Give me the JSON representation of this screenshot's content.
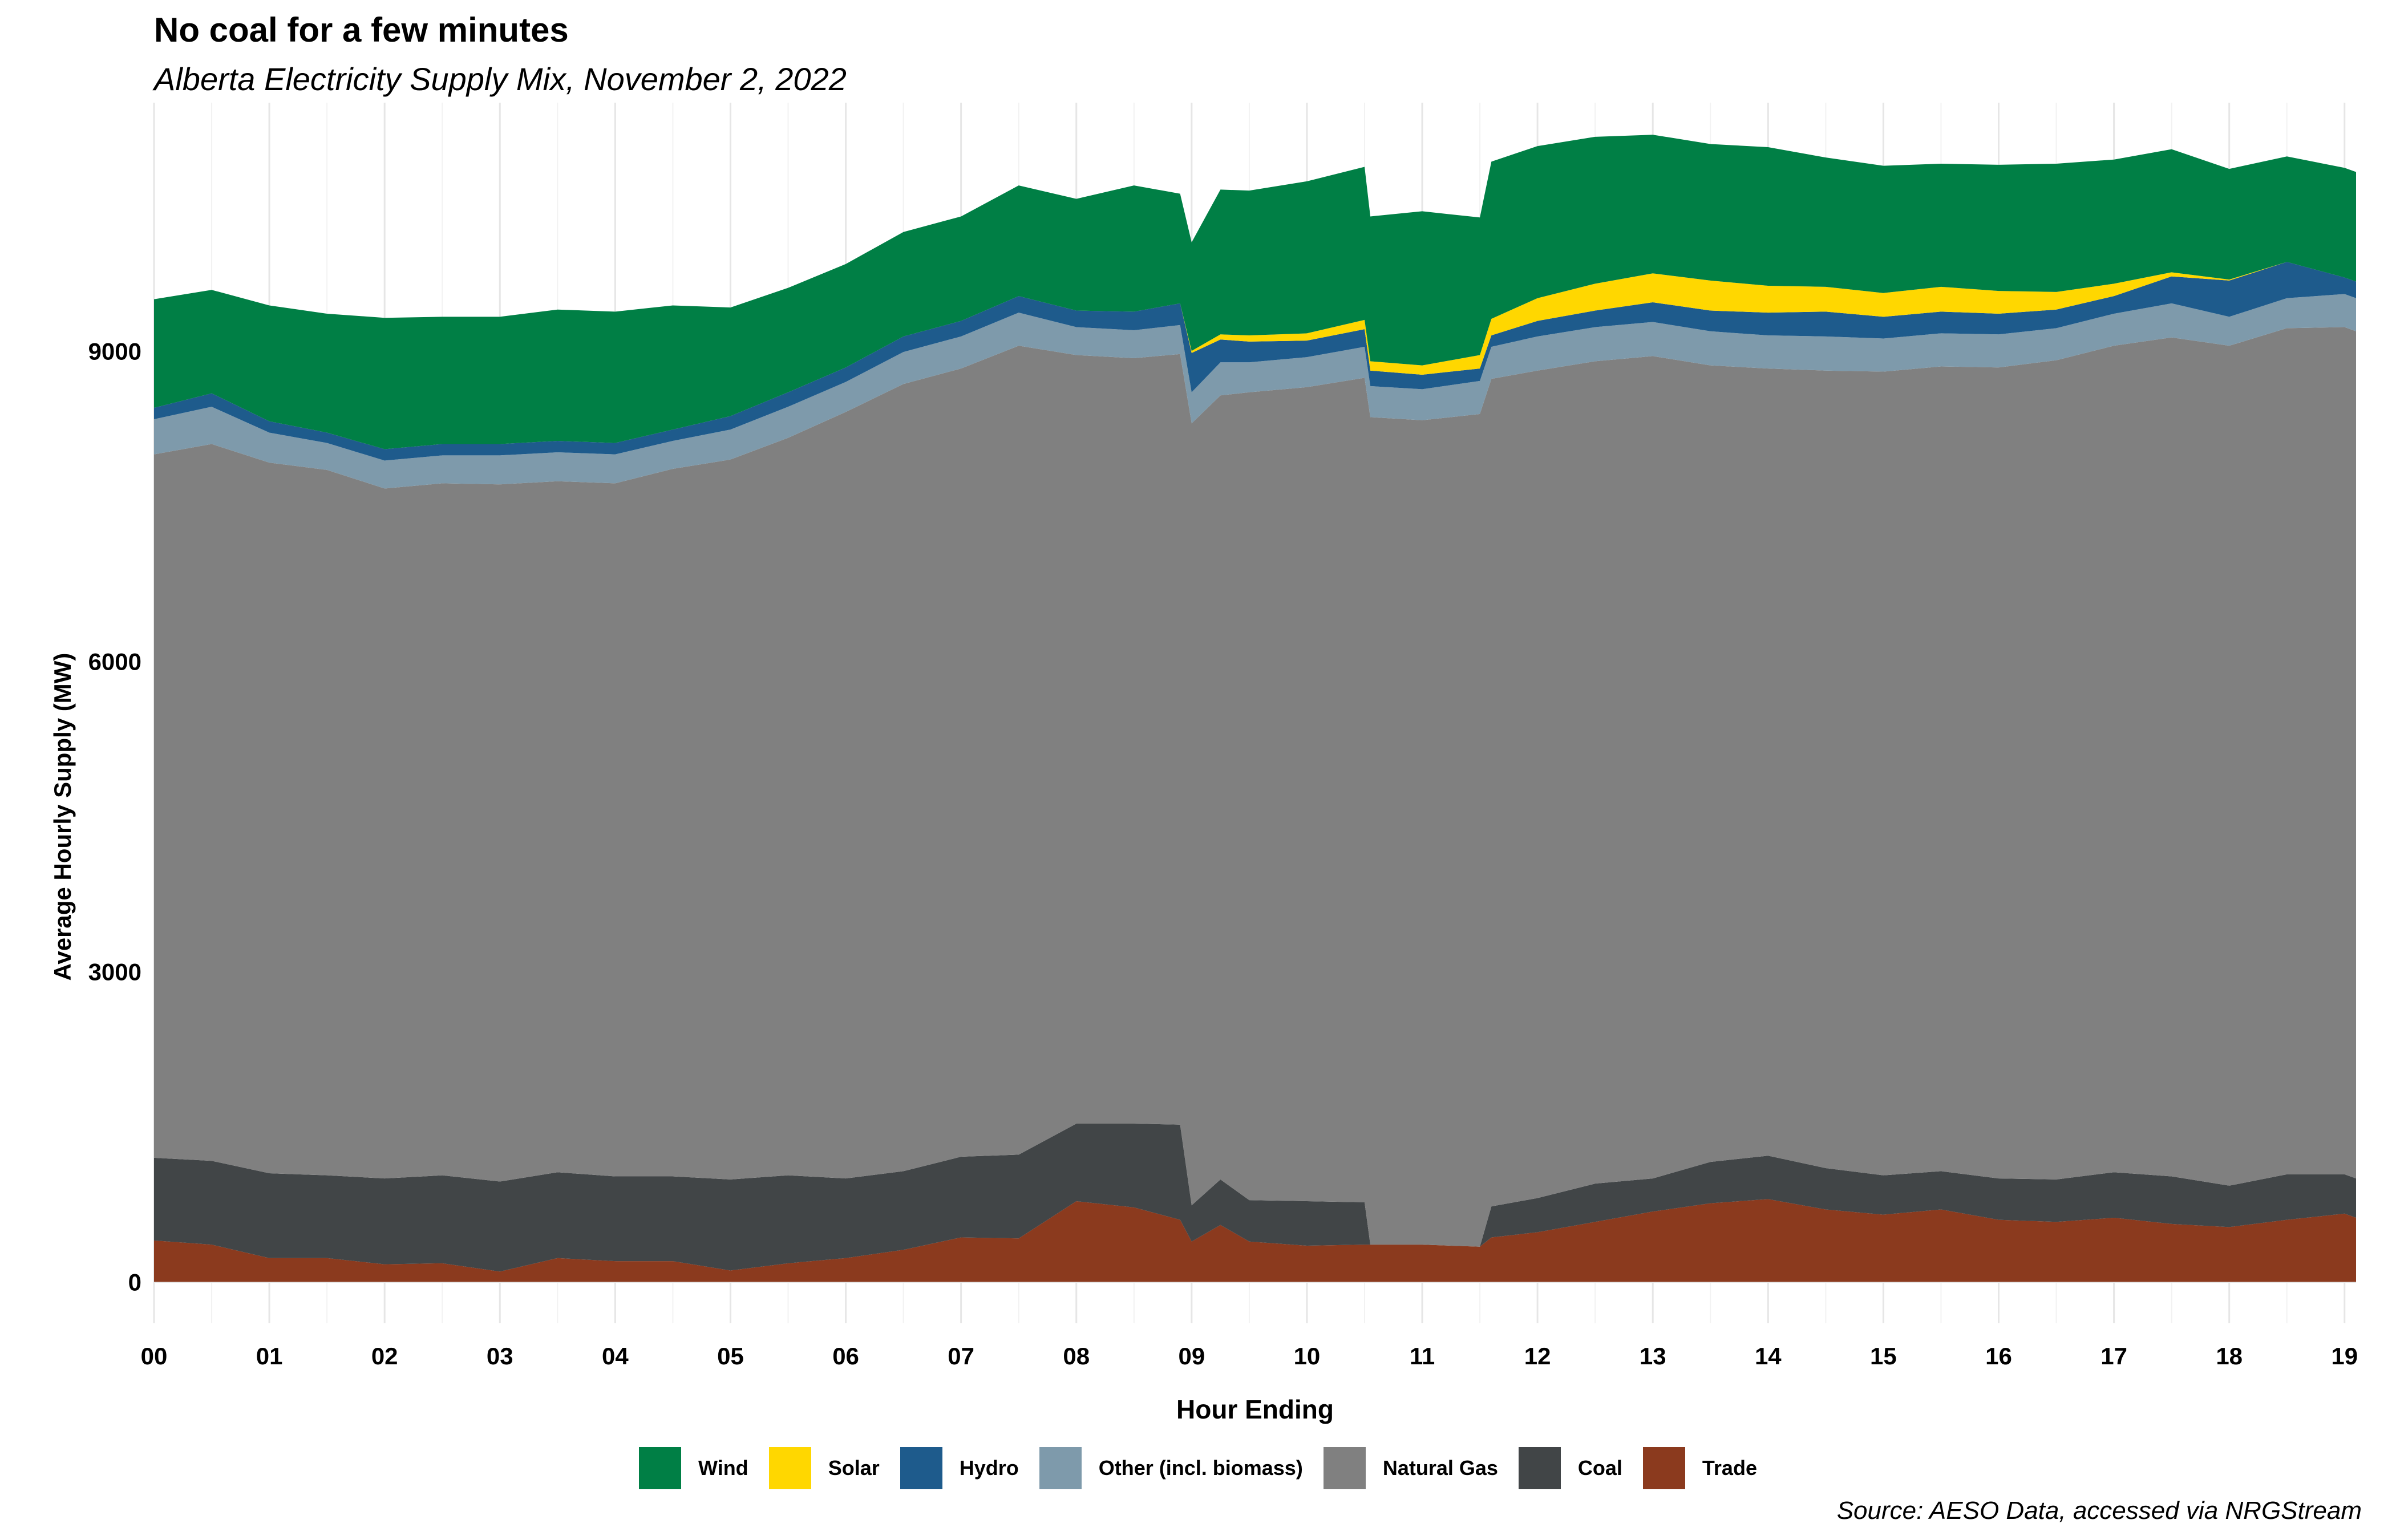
{
  "title": "No coal for a few minutes",
  "subtitle": "Alberta Electricity Supply Mix, November 2, 2022",
  "source": "Source: AESO Data, accessed via NRGStream",
  "chart_data": {
    "type": "area",
    "stacked": true,
    "xlabel": "Hour Ending",
    "ylabel": "Average Hourly Supply (MW)",
    "xlim": [
      0,
      19.1
    ],
    "ylim": [
      -400,
      11400
    ],
    "x_ticks": [
      "00",
      "01",
      "02",
      "03",
      "04",
      "05",
      "06",
      "07",
      "08",
      "09",
      "10",
      "11",
      "12",
      "13",
      "14",
      "15",
      "16",
      "17",
      "18",
      "19"
    ],
    "y_ticks": [
      0,
      3000,
      6000,
      9000
    ],
    "grid": true,
    "legend_position": "bottom",
    "x": [
      0,
      0.5,
      1,
      1.5,
      2,
      2.5,
      3,
      3.5,
      4,
      4.5,
      5,
      5.5,
      6,
      6.5,
      7,
      7.5,
      8,
      8.5,
      8.9,
      9,
      9.25,
      9.5,
      10,
      10.5,
      10.55,
      11,
      11.5,
      11.6,
      12,
      12.5,
      13,
      13.5,
      14,
      14.5,
      15,
      15.5,
      16,
      16.5,
      17,
      17.5,
      18,
      18.5,
      19,
      19.1
    ],
    "series": [
      {
        "name": "Trade",
        "color": "#8B3A1E",
        "values": [
          400,
          360,
          230,
          230,
          170,
          180,
          100,
          230,
          200,
          200,
          110,
          180,
          230,
          310,
          430,
          420,
          780,
          720,
          600,
          390,
          550,
          390,
          350,
          360,
          360,
          360,
          340,
          430,
          480,
          580,
          680,
          760,
          800,
          700,
          650,
          700,
          600,
          580,
          620,
          560,
          530,
          600,
          660,
          620
        ]
      },
      {
        "name": "Coal",
        "color": "#414547",
        "values": [
          800,
          810,
          820,
          800,
          830,
          850,
          870,
          830,
          820,
          820,
          880,
          850,
          770,
          760,
          780,
          810,
          750,
          810,
          920,
          350,
          440,
          400,
          430,
          410,
          0,
          0,
          0,
          300,
          330,
          370,
          320,
          400,
          420,
          400,
          380,
          370,
          400,
          410,
          440,
          460,
          400,
          440,
          380,
          380
        ]
      },
      {
        "name": "Natural Gas",
        "color": "#808080",
        "values": [
          6800,
          6930,
          6870,
          6820,
          6670,
          6690,
          6740,
          6680,
          6700,
          6840,
          6960,
          7130,
          7410,
          7610,
          7620,
          7820,
          7430,
          7400,
          7450,
          7560,
          7580,
          7810,
          7870,
          7970,
          8000,
          7970,
          8050,
          8000,
          8000,
          7950,
          7950,
          7700,
          7610,
          7710,
          7770,
          7780,
          7840,
          7920,
          7990,
          8110,
          8120,
          8180,
          8190,
          8190
        ]
      },
      {
        "name": "Other (incl. biomass)",
        "color": "#7E9AAB",
        "values": [
          340,
          360,
          290,
          260,
          270,
          270,
          280,
          280,
          280,
          270,
          290,
          300,
          290,
          310,
          310,
          320,
          270,
          270,
          280,
          300,
          320,
          290,
          290,
          300,
          300,
          300,
          320,
          310,
          330,
          330,
          330,
          330,
          320,
          330,
          320,
          320,
          320,
          310,
          310,
          330,
          280,
          290,
          320,
          320
        ]
      },
      {
        "name": "Hydro",
        "color": "#1E5B8C",
        "values": [
          110,
          130,
          110,
          100,
          110,
          110,
          110,
          110,
          110,
          110,
          130,
          140,
          140,
          150,
          150,
          160,
          160,
          180,
          210,
          380,
          220,
          200,
          160,
          170,
          150,
          140,
          120,
          110,
          150,
          160,
          190,
          200,
          220,
          240,
          210,
          210,
          200,
          180,
          170,
          260,
          350,
          350,
          160,
          160
        ]
      },
      {
        "name": "Solar",
        "color": "#FFD700",
        "values": [
          0,
          0,
          0,
          0,
          0,
          0,
          0,
          0,
          0,
          0,
          0,
          0,
          0,
          0,
          0,
          0,
          0,
          0,
          0,
          20,
          50,
          60,
          70,
          90,
          90,
          90,
          130,
          160,
          220,
          260,
          280,
          290,
          260,
          240,
          230,
          240,
          220,
          170,
          120,
          40,
          10,
          0,
          0,
          0
        ]
      },
      {
        "name": "Wind",
        "color": "#007F45",
        "values": [
          1050,
          1000,
          1120,
          1150,
          1270,
          1230,
          1230,
          1270,
          1270,
          1200,
          1050,
          1010,
          1000,
          1010,
          1010,
          1070,
          1080,
          1220,
          1060,
          1050,
          1400,
          1400,
          1470,
          1480,
          1400,
          1490,
          1330,
          1520,
          1470,
          1420,
          1340,
          1320,
          1340,
          1250,
          1230,
          1190,
          1220,
          1240,
          1200,
          1190,
          1070,
          1020,
          1060,
          1060
        ]
      }
    ]
  }
}
